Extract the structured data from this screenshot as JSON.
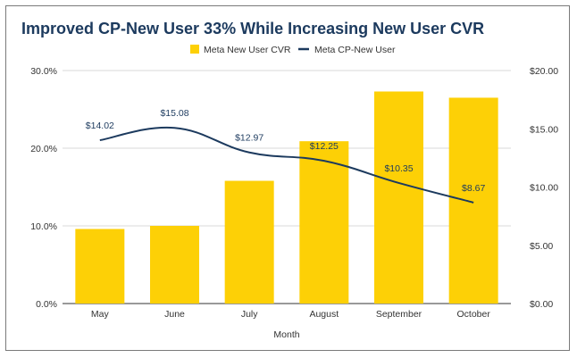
{
  "chart_data": {
    "type": "bar+line",
    "title": "Improved CP-New User 33% While Increasing New User CVR",
    "xlabel": "Month",
    "categories": [
      "May",
      "June",
      "July",
      "August",
      "September",
      "October"
    ],
    "bar_series": {
      "name": "Meta New User CVR",
      "values": [
        9.6,
        10.0,
        15.8,
        20.9,
        27.3,
        26.5
      ],
      "axis": "left",
      "color": "#fdd006"
    },
    "line_series": {
      "name": "Meta CP-New User",
      "values": [
        14.02,
        15.08,
        12.97,
        12.25,
        10.35,
        8.67
      ],
      "axis": "right",
      "color": "#1c3a5e",
      "labels": [
        "$14.02",
        "$15.08",
        "$12.97",
        "$12.25",
        "$10.35",
        "$8.67"
      ]
    },
    "left_axis": {
      "ylim": [
        0,
        30
      ],
      "ticks": [
        "0.0%",
        "10.0%",
        "20.0%",
        "30.0%"
      ],
      "tick_values": [
        0,
        10,
        20,
        30
      ]
    },
    "right_axis": {
      "ylim": [
        0,
        20
      ],
      "ticks": [
        "$0.00",
        "$5.00",
        "$10.00",
        "$15.00",
        "$20.00"
      ],
      "tick_values": [
        0,
        5,
        10,
        15,
        20
      ]
    },
    "legend_position": "top-center"
  }
}
